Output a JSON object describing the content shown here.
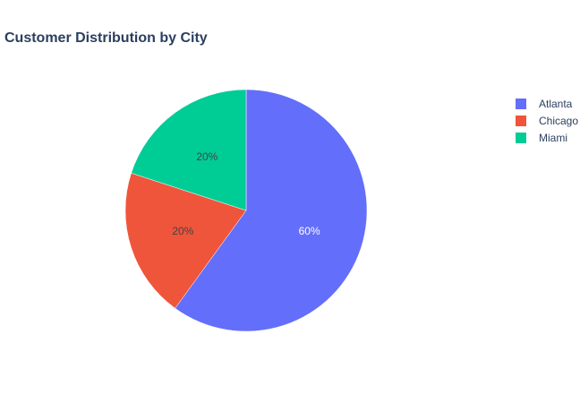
{
  "chart_data": {
    "type": "pie",
    "title": "Customer Distribution by City",
    "labels": [
      "Atlanta",
      "Chicago",
      "Miami"
    ],
    "values": [
      60,
      20,
      20
    ],
    "text_labels": [
      "60%",
      "20%",
      "20%"
    ],
    "colors": [
      "#636efa",
      "#ef553b",
      "#00cc96"
    ],
    "label_colors": [
      "#ffffff",
      "#444444",
      "#444444"
    ],
    "legend_position": "top-right",
    "start": "12 o'clock",
    "direction": "clockwise"
  }
}
